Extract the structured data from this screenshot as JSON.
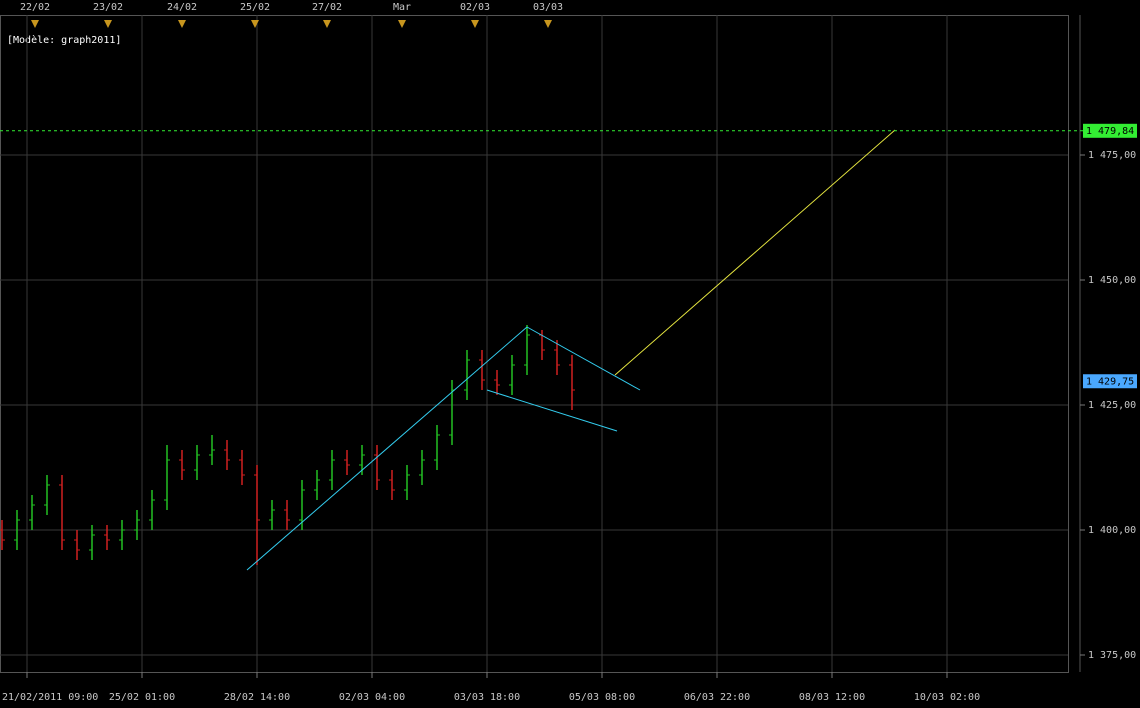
{
  "chart_data": {
    "type": "ohlc",
    "model_label": "[Modèle: graph2011]",
    "x": [
      -5,
      -2,
      1,
      4,
      7,
      10,
      13,
      16,
      19,
      22,
      25,
      28,
      31,
      34,
      37,
      40,
      43,
      46,
      49,
      52,
      55,
      58,
      61,
      64,
      67,
      70,
      73,
      76,
      79,
      82,
      85,
      88,
      91,
      94,
      97,
      100,
      103,
      106,
      109
    ],
    "open": [
      1400,
      1398,
      1402,
      1405,
      1409,
      1398,
      1396,
      1399,
      1398,
      1400,
      1402,
      1406,
      1414,
      1412,
      1415,
      1416,
      1414,
      1411,
      1402,
      1404,
      1402,
      1408,
      1410,
      1414,
      1413,
      1415,
      1410,
      1408,
      1411,
      1414,
      1419,
      1428,
      1434,
      1430,
      1429,
      1433,
      1439,
      1436,
      1433
    ],
    "high": [
      1402,
      1404,
      1407,
      1411,
      1411,
      1400,
      1401,
      1401,
      1402,
      1404,
      1408,
      1417,
      1416,
      1417,
      1419,
      1418,
      1416,
      1413,
      1406,
      1406,
      1410,
      1412,
      1416,
      1416,
      1417,
      1417,
      1412,
      1413,
      1416,
      1421,
      1430,
      1436,
      1436,
      1432,
      1435,
      1441,
      1440,
      1438,
      1435
    ],
    "low": [
      1396,
      1396,
      1400,
      1403,
      1396,
      1394,
      1394,
      1396,
      1396,
      1398,
      1400,
      1404,
      1410,
      1410,
      1413,
      1412,
      1409,
      1393,
      1400,
      1400,
      1400,
      1406,
      1408,
      1411,
      1411,
      1408,
      1406,
      1406,
      1409,
      1412,
      1417,
      1426,
      1428,
      1427,
      1427,
      1431,
      1434,
      1431,
      1424
    ],
    "close": [
      1398,
      1402,
      1405,
      1409,
      1398,
      1396,
      1399,
      1398,
      1400,
      1402,
      1406,
      1414,
      1412,
      1415,
      1416,
      1414,
      1411,
      1402,
      1404,
      1402,
      1408,
      1410,
      1414,
      1413,
      1415,
      1410,
      1408,
      1411,
      1414,
      1419,
      1428,
      1434,
      1430,
      1429,
      1433,
      1439,
      1436,
      1433,
      1428
    ],
    "up_color": "#22c022",
    "down_color": "#d02020",
    "lines": [
      {
        "color": "#33ccee",
        "x": [
          44,
          100
        ],
        "y": [
          1392,
          1440.6
        ]
      },
      {
        "color": "#33ccee",
        "x": [
          100,
          122.6
        ],
        "y": [
          1440.6,
          1428
        ]
      },
      {
        "color": "#33ccee",
        "x": [
          92,
          118
        ],
        "y": [
          1428,
          1419.8
        ]
      },
      {
        "color": "#e8e840",
        "x": [
          117.6,
          173.6
        ],
        "y": [
          1431,
          1480
        ]
      }
    ],
    "price_levels": [
      {
        "value": 1479.84,
        "label": "1 479,84",
        "color": "#33ee33",
        "line": true
      },
      {
        "value": 1429.75,
        "label": "1 429,75",
        "color": "#4aa8ff",
        "line": false
      }
    ],
    "xlim": [
      -5.4,
      208.2
    ],
    "xticks": [
      {
        "value": 0,
        "label": "21/02/2011 09:00"
      },
      {
        "value": 23,
        "label": "25/02 01:00"
      },
      {
        "value": 46,
        "label": "28/02 14:00"
      },
      {
        "value": 69,
        "label": "02/03 04:00"
      },
      {
        "value": 92,
        "label": "03/03 18:00"
      },
      {
        "value": 115,
        "label": "05/03 08:00"
      },
      {
        "value": 138,
        "label": "06/03 22:00"
      },
      {
        "value": 161,
        "label": "08/03 12:00"
      },
      {
        "value": 184,
        "label": "10/03 02:00"
      }
    ],
    "x2ticks": [
      {
        "value": 1.6,
        "label": "22/02"
      },
      {
        "value": 16.2,
        "label": "23/02"
      },
      {
        "value": 31,
        "label": "24/02"
      },
      {
        "value": 45.6,
        "label": "25/02"
      },
      {
        "value": 60,
        "label": "27/02"
      },
      {
        "value": 75,
        "label": "Mar"
      },
      {
        "value": 89.6,
        "label": "02/03"
      },
      {
        "value": 104.2,
        "label": "03/03"
      }
    ],
    "ylim": [
      1371.6,
      1503
    ],
    "yticks": [
      {
        "value": 1375,
        "label": "1 375,00"
      },
      {
        "value": 1400,
        "label": "1 400,00"
      },
      {
        "value": 1425,
        "label": "1 425,00"
      },
      {
        "value": 1450,
        "label": "1 450,00"
      },
      {
        "value": 1475,
        "label": "1 475,00"
      }
    ],
    "grid": true
  }
}
